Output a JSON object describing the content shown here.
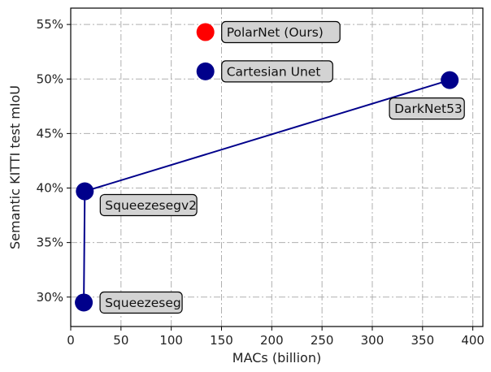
{
  "chart_data": {
    "type": "scatter",
    "xlabel": "MACs (billion)",
    "ylabel": "Semantic KITTI test mIoU",
    "xlim": [
      0,
      410
    ],
    "ylim": [
      27.3,
      56.5
    ],
    "x_ticks": [
      0,
      50,
      100,
      150,
      200,
      250,
      300,
      350,
      400
    ],
    "y_ticks": [
      30,
      35,
      40,
      45,
      50,
      55
    ],
    "y_tick_suffix": "%",
    "grid": true,
    "grid_style": "dash-dot",
    "points": [
      {
        "label": "PolarNet (Ours)",
        "x": 134,
        "y": 54.3,
        "color": "#ff0000",
        "label_side": "right"
      },
      {
        "label": "Cartesian Unet",
        "x": 134,
        "y": 50.7,
        "color": "#00008b",
        "label_side": "right"
      },
      {
        "label": "DarkNet53",
        "x": 377,
        "y": 49.9,
        "color": "#00008b",
        "label_side": "below-left"
      },
      {
        "label": "Squeezesegv2",
        "x": 14,
        "y": 39.7,
        "color": "#00008b",
        "label_side": "below-right"
      },
      {
        "label": "Squeezeseg",
        "x": 13,
        "y": 29.5,
        "color": "#00008b",
        "label_side": "right"
      }
    ],
    "line_series": {
      "color": "#00008b",
      "points": [
        {
          "x": 13,
          "y": 29.5
        },
        {
          "x": 14,
          "y": 39.7
        },
        {
          "x": 377,
          "y": 49.9
        }
      ]
    }
  }
}
